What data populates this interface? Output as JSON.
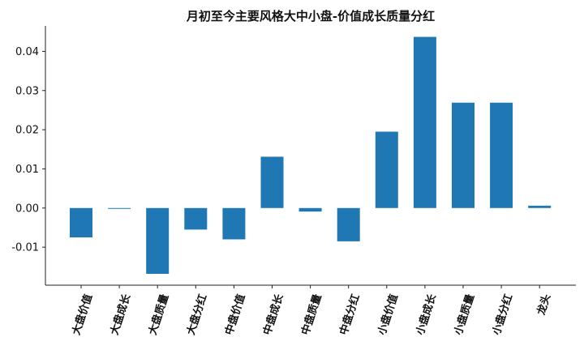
{
  "chart_data": {
    "type": "bar",
    "title": "月初至今主要风格大中小盘-价值成长质量分红",
    "xlabel": "",
    "ylabel": "",
    "categories": [
      "大盘价值",
      "大盘成长",
      "大盘质量",
      "大盘分红",
      "中盘价值",
      "中盘成长",
      "中盘质量",
      "中盘分红",
      "小盘价值",
      "小盘成长",
      "小盘质量",
      "小盘分红",
      "龙头"
    ],
    "values": [
      -0.0075,
      -0.0002,
      -0.0168,
      -0.0055,
      -0.008,
      0.0131,
      -0.0009,
      -0.0085,
      0.0195,
      0.0437,
      0.0269,
      0.0269,
      0.0006
    ],
    "y_ticks": [
      "-0.01",
      "0.00",
      "0.01",
      "0.02",
      "0.03",
      "0.04"
    ],
    "ylim": [
      -0.0197,
      0.0465
    ],
    "bar_color": "#1f77b4",
    "grid": false,
    "legend": "none"
  }
}
